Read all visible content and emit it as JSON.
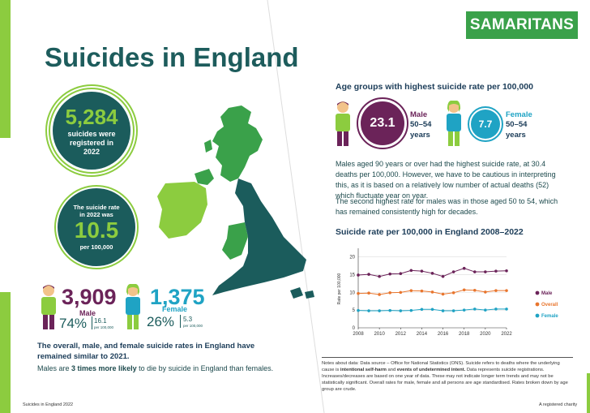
{
  "brand": {
    "logo_text": "SAMARITANS",
    "green": "#8ccc3f",
    "teal": "#1b5c5c",
    "purple": "#6b2359",
    "blue": "#1fa3c4"
  },
  "title": "Suicides in England",
  "registered": {
    "number": "5,284",
    "text_line1": "suicides were",
    "text_line2": "registered in",
    "text_line3": "2022"
  },
  "rate": {
    "line1": "The suicide rate",
    "line2": "in 2022 was",
    "value": "10.5",
    "unit": "per 100,000"
  },
  "male": {
    "count": "3,909",
    "label": "Male",
    "percent": "74%",
    "rate": "16.1",
    "rate_unit": "per 100,000"
  },
  "female": {
    "count": "1,375",
    "label": "Female",
    "percent": "26%",
    "rate": "5.3",
    "rate_unit": "per 100,000"
  },
  "summary": {
    "bold_line": "The overall, male, and female suicide rates in England have remained similar to 2021.",
    "males_prefix": "Males are ",
    "males_bold": "3 times more likely",
    "males_suffix": " to die by suicide in England than females."
  },
  "age_groups": {
    "heading": "Age groups with highest suicide rate per 100,000",
    "male": {
      "value": "23.1",
      "label": "Male",
      "age": "50–54",
      "years": "years"
    },
    "female": {
      "value": "7.7",
      "label": "Female",
      "age": "50–54",
      "years": "years"
    },
    "para1": "Males aged 90 years or over had the highest suicide rate, at 30.4 deaths per 100,000. However, we have to be cautious in interpreting this, as it is based on a relatively low number of actual deaths (52) which fluctuate year on year.",
    "para2": "The second highest rate for males was in those aged 50 to 54, which has remained consistently high for decades."
  },
  "chart_data": {
    "type": "line",
    "title": "Suicide rate per 100,000 in England 2008–2022",
    "ylabel": "Rate per 100,000",
    "xlabel": "",
    "x": [
      2008,
      2009,
      2010,
      2011,
      2012,
      2013,
      2014,
      2015,
      2016,
      2017,
      2018,
      2019,
      2020,
      2021,
      2022
    ],
    "x_ticks": [
      "2008",
      "2010",
      "2012",
      "2014",
      "2016",
      "2018",
      "2020",
      "2022"
    ],
    "y_ticks": [
      "0",
      "5",
      "10",
      "15",
      "20"
    ],
    "ylim": [
      0,
      22
    ],
    "grid": true,
    "legend_position": "right",
    "series": [
      {
        "name": "Male",
        "color": "#6b2359",
        "values": [
          14.9,
          15.1,
          14.5,
          15.2,
          15.3,
          16.2,
          16.0,
          15.4,
          14.5,
          15.8,
          16.8,
          15.8,
          15.8,
          16.0,
          16.1
        ]
      },
      {
        "name": "Overall",
        "color": "#e8752d",
        "values": [
          9.7,
          9.8,
          9.4,
          9.9,
          10.0,
          10.5,
          10.4,
          10.1,
          9.5,
          9.9,
          10.7,
          10.6,
          10.1,
          10.5,
          10.5
        ]
      },
      {
        "name": "Female",
        "color": "#1fa3c4",
        "values": [
          4.9,
          4.8,
          4.8,
          4.9,
          4.8,
          4.9,
          5.2,
          5.2,
          4.8,
          4.8,
          5.0,
          5.3,
          5.0,
          5.3,
          5.3
        ]
      }
    ]
  },
  "notes": {
    "prefix": "Notes about data: Data source – Office for National Statistics (ONS). Suicide refers to deaths where the underlying cause is ",
    "bold1": "intentional self-harm",
    "mid": " and ",
    "bold2": "events of undetermined intent.",
    "suffix": " Data represents suicide registrations. Increases/decreases are based on one year of data. These may not indicate longer term trends and may not be statistically significant. Overall rates for male, female and all persons are age standardised. Rates broken down by age group are crude."
  },
  "footer": {
    "left": "Suicides in England 2022",
    "right": "A registered charity"
  }
}
